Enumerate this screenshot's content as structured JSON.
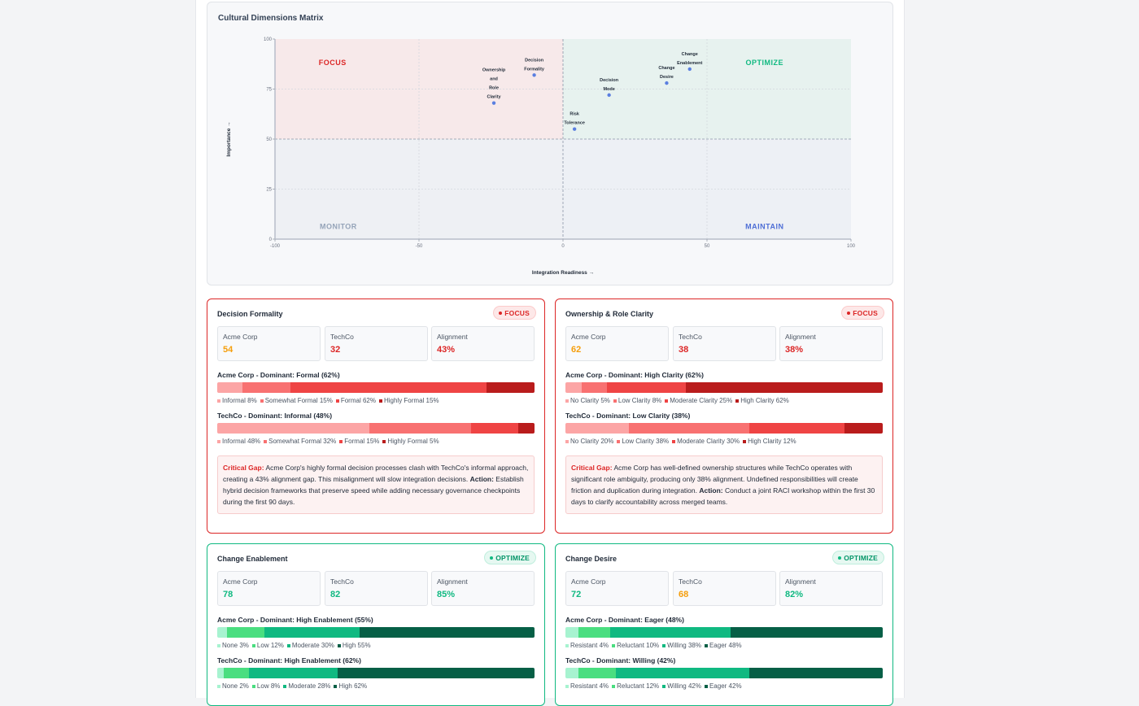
{
  "matrix": {
    "title": "Cultural Dimensions Matrix",
    "x_axis_label": "Integration Readiness →",
    "y_axis_label": "Importance →",
    "quadrants": {
      "focus": "FOCUS",
      "optimize": "OPTIMIZE",
      "monitor": "MONITOR",
      "maintain": "MAINTAIN"
    },
    "colors": {
      "focus": "#dc2626",
      "optimize": "#10b981",
      "monitor": "#94a3b8",
      "maintain": "#4f6fd6",
      "point": "#5b7fe0"
    }
  },
  "chart_data": {
    "type": "scatter",
    "title": "Cultural Dimensions Matrix",
    "xlabel": "Integration Readiness →",
    "ylabel": "Importance →",
    "xlim": [
      -100,
      100
    ],
    "ylim": [
      0,
      100
    ],
    "x_ticks": [
      "-100",
      "-50",
      "0",
      "50",
      "100"
    ],
    "y_ticks": [
      "0",
      "25",
      "50",
      "75",
      "100"
    ],
    "points": [
      {
        "label": [
          "Ownership",
          "and",
          "Role",
          "Clarity"
        ],
        "x": -24,
        "y": 68
      },
      {
        "label": [
          "Decision",
          "Formality"
        ],
        "x": -10,
        "y": 82
      },
      {
        "label": [
          "Risk",
          "Tolerance"
        ],
        "x": 4,
        "y": 55
      },
      {
        "label": [
          "Decision",
          "Mode"
        ],
        "x": 16,
        "y": 72
      },
      {
        "label": [
          "Change",
          "Desire"
        ],
        "x": 36,
        "y": 78
      },
      {
        "label": [
          "Change",
          "Enablement"
        ],
        "x": 44,
        "y": 85
      }
    ]
  },
  "cards": [
    {
      "title": "Decision Formality",
      "badge": "FOCUS",
      "acme_label": "Acme Corp",
      "acme_value": "54",
      "techco_label": "TechCo",
      "techco_value": "32",
      "align_label": "Alignment",
      "align_value": "43%",
      "acme_dist": {
        "title": "Acme Corp - Dominant: Formal (62%)",
        "segments": [
          {
            "label": "Informal 8%",
            "pct": 8,
            "color": "#fca5a5"
          },
          {
            "label": "Somewhat Formal 15%",
            "pct": 15,
            "color": "#f87171"
          },
          {
            "label": "Formal 62%",
            "pct": 62,
            "color": "#ef4444"
          },
          {
            "label": "Highly Formal 15%",
            "pct": 15,
            "color": "#b91c1c"
          }
        ]
      },
      "techco_dist": {
        "title": "TechCo - Dominant: Informal (48%)",
        "segments": [
          {
            "label": "Informal 48%",
            "pct": 48,
            "color": "#fca5a5"
          },
          {
            "label": "Somewhat Formal 32%",
            "pct": 32,
            "color": "#f87171"
          },
          {
            "label": "Formal 15%",
            "pct": 15,
            "color": "#ef4444"
          },
          {
            "label": "Highly Formal 5%",
            "pct": 5,
            "color": "#b91c1c"
          }
        ]
      },
      "gap_label": "Critical Gap:",
      "gap_text": " Acme Corp's highly formal decision processes clash with TechCo's informal approach, creating a 43% alignment gap. This misalignment will slow integration decisions. ",
      "action_label": "Action:",
      "action_text": " Establish hybrid decision frameworks that preserve speed while adding necessary governance checkpoints during the first 90 days."
    },
    {
      "title": "Ownership & Role Clarity",
      "badge": "FOCUS",
      "acme_label": "Acme Corp",
      "acme_value": "62",
      "techco_label": "TechCo",
      "techco_value": "38",
      "align_label": "Alignment",
      "align_value": "38%",
      "acme_dist": {
        "title": "Acme Corp - Dominant: High Clarity (62%)",
        "segments": [
          {
            "label": "No Clarity 5%",
            "pct": 5,
            "color": "#fca5a5"
          },
          {
            "label": "Low Clarity 8%",
            "pct": 8,
            "color": "#f87171"
          },
          {
            "label": "Moderate Clarity 25%",
            "pct": 25,
            "color": "#ef4444"
          },
          {
            "label": "High Clarity 62%",
            "pct": 62,
            "color": "#b91c1c"
          }
        ]
      },
      "techco_dist": {
        "title": "TechCo - Dominant: Low Clarity (38%)",
        "segments": [
          {
            "label": "No Clarity 20%",
            "pct": 20,
            "color": "#fca5a5"
          },
          {
            "label": "Low Clarity 38%",
            "pct": 38,
            "color": "#f87171"
          },
          {
            "label": "Moderate Clarity 30%",
            "pct": 30,
            "color": "#ef4444"
          },
          {
            "label": "High Clarity 12%",
            "pct": 12,
            "color": "#b91c1c"
          }
        ]
      },
      "gap_label": "Critical Gap:",
      "gap_text": " Acme Corp has well-defined ownership structures while TechCo operates with significant role ambiguity, producing only 38% alignment. Undefined responsibilities will create friction and duplication during integration. ",
      "action_label": "Action:",
      "action_text": " Conduct a joint RACI workshop within the first 30 days to clarify accountability across merged teams."
    },
    {
      "title": "Change Enablement",
      "badge": "OPTIMIZE",
      "acme_label": "Acme Corp",
      "acme_value": "78",
      "techco_label": "TechCo",
      "techco_value": "82",
      "align_label": "Alignment",
      "align_value": "85%",
      "acme_dist": {
        "title": "Acme Corp - Dominant: High Enablement (55%)",
        "segments": [
          {
            "label": "None 3%",
            "pct": 3,
            "color": "#a7f3d0"
          },
          {
            "label": "Low 12%",
            "pct": 12,
            "color": "#4ade80"
          },
          {
            "label": "Moderate 30%",
            "pct": 30,
            "color": "#10b981"
          },
          {
            "label": "High 55%",
            "pct": 55,
            "color": "#065f46"
          }
        ]
      },
      "techco_dist": {
        "title": "TechCo - Dominant: High Enablement (62%)",
        "segments": [
          {
            "label": "None 2%",
            "pct": 2,
            "color": "#a7f3d0"
          },
          {
            "label": "Low 8%",
            "pct": 8,
            "color": "#4ade80"
          },
          {
            "label": "Moderate 28%",
            "pct": 28,
            "color": "#10b981"
          },
          {
            "label": "High 62%",
            "pct": 62,
            "color": "#065f46"
          }
        ]
      }
    },
    {
      "title": "Change Desire",
      "badge": "OPTIMIZE",
      "acme_label": "Acme Corp",
      "acme_value": "72",
      "techco_label": "TechCo",
      "techco_value": "68",
      "align_label": "Alignment",
      "align_value": "82%",
      "acme_dist": {
        "title": "Acme Corp - Dominant: Eager (48%)",
        "segments": [
          {
            "label": "Resistant 4%",
            "pct": 4,
            "color": "#a7f3d0"
          },
          {
            "label": "Reluctant 10%",
            "pct": 10,
            "color": "#4ade80"
          },
          {
            "label": "Willing 38%",
            "pct": 38,
            "color": "#10b981"
          },
          {
            "label": "Eager 48%",
            "pct": 48,
            "color": "#065f46"
          }
        ]
      },
      "techco_dist": {
        "title": "TechCo - Dominant: Willing (42%)",
        "segments": [
          {
            "label": "Resistant 4%",
            "pct": 4,
            "color": "#a7f3d0"
          },
          {
            "label": "Reluctant 12%",
            "pct": 12,
            "color": "#4ade80"
          },
          {
            "label": "Willing 42%",
            "pct": 42,
            "color": "#10b981"
          },
          {
            "label": "Eager 42%",
            "pct": 42,
            "color": "#065f46"
          }
        ]
      }
    }
  ]
}
